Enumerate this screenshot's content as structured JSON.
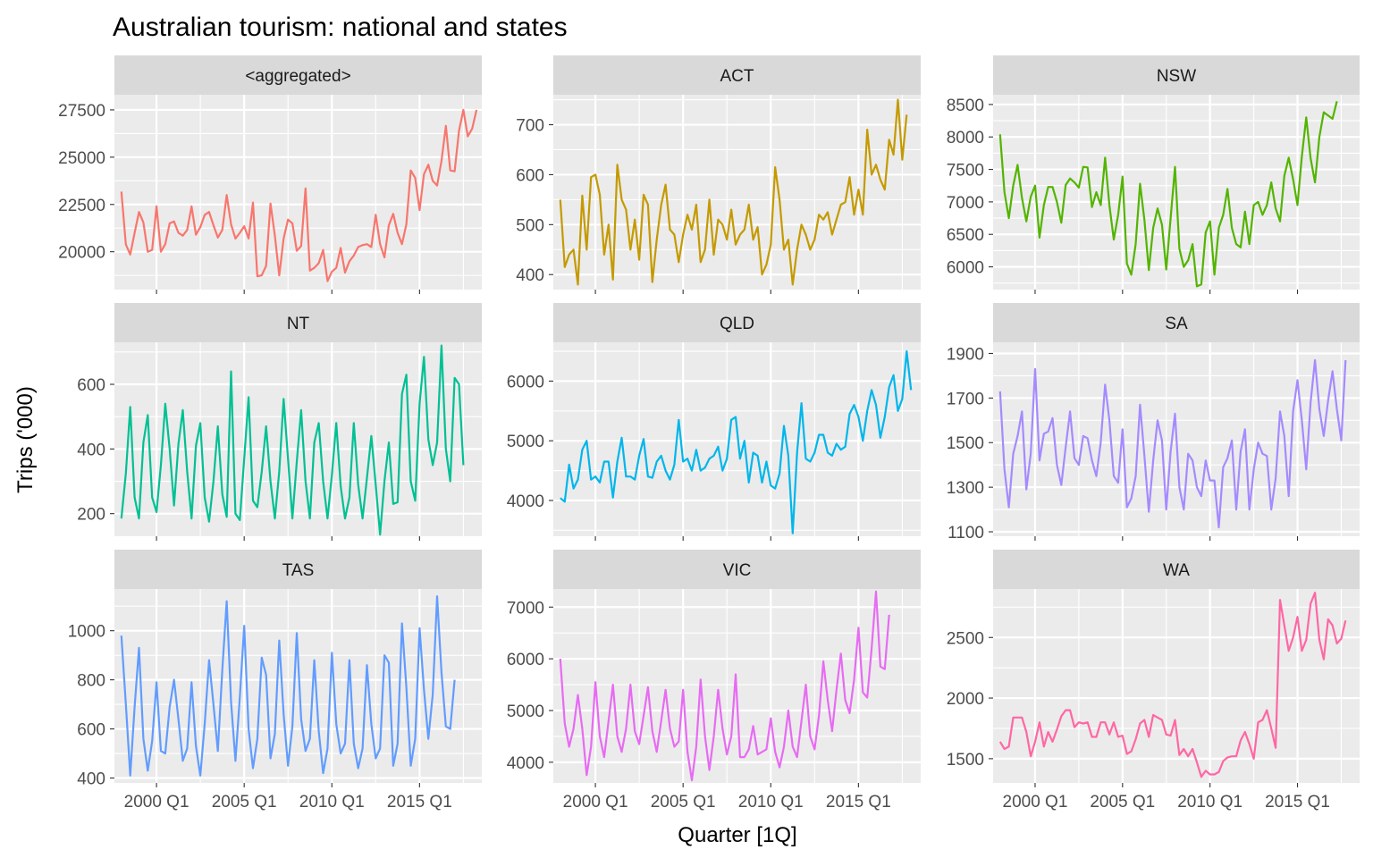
{
  "chart_data": {
    "type": "line",
    "title": "Australian tourism: national and states",
    "xlabel": "Quarter [1Q]",
    "ylabel": "Trips ('000)",
    "x_start": "1998 Q1",
    "x_end": "2017 Q4",
    "x_ticks": [
      {
        "t": 2000.0,
        "label": "2000 Q1"
      },
      {
        "t": 2005.0,
        "label": "2005 Q1"
      },
      {
        "t": 2010.0,
        "label": "2010 Q1"
      },
      {
        "t": 2015.0,
        "label": "2015 Q1"
      }
    ],
    "grid": true,
    "legend": "none",
    "panels": [
      {
        "name": "<aggregated>",
        "color": "#F8766D",
        "ylim": [
          18000,
          28300
        ],
        "y_ticks": [
          20000,
          22500,
          25000,
          27500
        ],
        "values": [
          23180,
          20380,
          19850,
          21000,
          22100,
          21550,
          20000,
          20100,
          22400,
          20000,
          20400,
          21500,
          21600,
          21000,
          20850,
          21150,
          22400,
          20900,
          21300,
          21950,
          22100,
          21400,
          20750,
          21150,
          23000,
          21450,
          20700,
          21000,
          21350,
          20700,
          22600,
          18700,
          18750,
          19250,
          22550,
          20850,
          18750,
          20700,
          21700,
          21500,
          20050,
          20300,
          23350,
          19000,
          19150,
          19400,
          20100,
          18450,
          18950,
          19150,
          20200,
          18900,
          19500,
          19800,
          20250,
          20350,
          20400,
          20250,
          21950,
          20400,
          19700,
          21400,
          22000,
          21000,
          20400,
          21450,
          24300,
          23900,
          22200,
          24100,
          24600,
          23750,
          23500,
          24800,
          26650,
          24300,
          24250,
          26400,
          27500,
          26100,
          26500,
          27500
        ]
      },
      {
        "name": "ACT",
        "color": "#C49A00",
        "ylim": [
          370,
          760
        ],
        "y_ticks": [
          400,
          500,
          600,
          700
        ],
        "values": [
          550,
          415,
          440,
          450,
          380,
          558,
          450,
          595,
          600,
          560,
          440,
          500,
          390,
          620,
          550,
          530,
          450,
          510,
          430,
          560,
          540,
          385,
          470,
          540,
          580,
          490,
          480,
          425,
          480,
          520,
          490,
          540,
          425,
          450,
          550,
          440,
          510,
          500,
          470,
          530,
          460,
          480,
          490,
          540,
          470,
          495,
          400,
          420,
          460,
          615,
          550,
          450,
          470,
          380,
          450,
          500,
          480,
          450,
          470,
          520,
          510,
          525,
          480,
          510,
          540,
          545,
          595,
          520,
          570,
          520,
          690,
          600,
          620,
          590,
          570,
          670,
          640,
          750,
          630,
          720
        ]
      },
      {
        "name": "NSW",
        "color": "#53B400",
        "ylim": [
          5650,
          8650
        ],
        "y_ticks": [
          6000,
          6500,
          7000,
          7500,
          8000,
          8500
        ],
        "values": [
          8040,
          7150,
          6750,
          7250,
          7570,
          7060,
          6700,
          7080,
          7250,
          6450,
          6950,
          7230,
          7230,
          7000,
          6680,
          7260,
          7360,
          7300,
          7220,
          7540,
          7530,
          6920,
          7150,
          6950,
          7680,
          6950,
          6420,
          6800,
          7390,
          6050,
          5880,
          6350,
          7280,
          6720,
          5950,
          6600,
          6900,
          6650,
          5960,
          6750,
          7540,
          6280,
          6000,
          6100,
          6350,
          5700,
          5730,
          6530,
          6700,
          5880,
          6600,
          6800,
          7200,
          6600,
          6350,
          6300,
          6850,
          6350,
          6950,
          7000,
          6800,
          6950,
          7300,
          6900,
          6700,
          7400,
          7680,
          7350,
          6950,
          7700,
          8300,
          7670,
          7300,
          8000,
          8380,
          8330,
          8280,
          8550
        ]
      },
      {
        "name": "NT",
        "color": "#00C094",
        "ylim": [
          130,
          730
        ],
        "y_ticks": [
          200,
          400,
          600
        ],
        "values": [
          185,
          325,
          530,
          250,
          185,
          420,
          505,
          250,
          205,
          350,
          540,
          400,
          225,
          415,
          520,
          330,
          185,
          410,
          480,
          250,
          175,
          300,
          470,
          260,
          190,
          640,
          200,
          180,
          370,
          560,
          240,
          220,
          330,
          470,
          300,
          185,
          330,
          555,
          370,
          185,
          360,
          520,
          300,
          185,
          420,
          480,
          300,
          185,
          320,
          480,
          285,
          185,
          250,
          480,
          290,
          185,
          310,
          440,
          290,
          135,
          300,
          420,
          230,
          235,
          570,
          630,
          300,
          240,
          540,
          685,
          430,
          350,
          420,
          720,
          400,
          300,
          620,
          600,
          350
        ]
      },
      {
        "name": "QLD",
        "color": "#00B6EB",
        "ylim": [
          3400,
          6650
        ],
        "y_ticks": [
          4000,
          5000,
          6000
        ],
        "values": [
          4040,
          3980,
          4600,
          4200,
          4350,
          4850,
          5000,
          4350,
          4400,
          4300,
          4650,
          4650,
          4050,
          4650,
          5050,
          4400,
          4400,
          4350,
          4750,
          5030,
          4400,
          4380,
          4650,
          4750,
          4500,
          4350,
          4600,
          5350,
          4650,
          4700,
          4500,
          4850,
          4500,
          4550,
          4700,
          4750,
          4900,
          4500,
          4700,
          5350,
          5400,
          4700,
          5000,
          4300,
          4800,
          4750,
          4300,
          4650,
          4250,
          4200,
          4450,
          5250,
          4750,
          3450,
          4800,
          5630,
          4700,
          4650,
          4800,
          5100,
          5100,
          4800,
          4750,
          4950,
          4850,
          4900,
          5450,
          5600,
          5400,
          5000,
          5500,
          5850,
          5600,
          5050,
          5400,
          5900,
          6100,
          5500,
          5700,
          6500,
          5850
        ]
      },
      {
        "name": "SA",
        "color": "#A58AFF",
        "ylim": [
          1080,
          1950
        ],
        "y_ticks": [
          1100,
          1300,
          1500,
          1700,
          1900
        ],
        "values": [
          1730,
          1380,
          1210,
          1450,
          1530,
          1640,
          1290,
          1450,
          1830,
          1420,
          1540,
          1550,
          1610,
          1400,
          1310,
          1480,
          1640,
          1430,
          1400,
          1530,
          1520,
          1420,
          1350,
          1500,
          1760,
          1600,
          1350,
          1320,
          1560,
          1210,
          1250,
          1350,
          1670,
          1440,
          1190,
          1420,
          1600,
          1510,
          1200,
          1460,
          1630,
          1300,
          1200,
          1450,
          1420,
          1300,
          1260,
          1420,
          1330,
          1330,
          1120,
          1390,
          1430,
          1510,
          1200,
          1460,
          1560,
          1200,
          1380,
          1500,
          1450,
          1440,
          1200,
          1340,
          1640,
          1530,
          1260,
          1640,
          1780,
          1600,
          1380,
          1680,
          1870,
          1650,
          1530,
          1690,
          1820,
          1650,
          1510,
          1870
        ]
      },
      {
        "name": "TAS",
        "color": "#619CFF",
        "ylim": [
          380,
          1170
        ],
        "y_ticks": [
          400,
          600,
          800,
          1000
        ],
        "values": [
          980,
          700,
          410,
          690,
          930,
          560,
          430,
          550,
          790,
          510,
          500,
          690,
          800,
          640,
          470,
          520,
          790,
          530,
          410,
          620,
          880,
          700,
          510,
          840,
          1120,
          710,
          470,
          730,
          1020,
          600,
          440,
          560,
          890,
          820,
          480,
          580,
          960,
          660,
          450,
          610,
          990,
          640,
          510,
          560,
          880,
          590,
          420,
          520,
          910,
          620,
          500,
          540,
          880,
          540,
          440,
          520,
          860,
          620,
          480,
          520,
          900,
          870,
          450,
          540,
          1030,
          770,
          450,
          560,
          1010,
          760,
          560,
          740,
          1140,
          830,
          610,
          600,
          800
        ]
      },
      {
        "name": "VIC",
        "color": "#E76BF3",
        "ylim": [
          3600,
          7350
        ],
        "y_ticks": [
          4000,
          5000,
          6000,
          7000
        ],
        "values": [
          6000,
          4750,
          4300,
          4650,
          5300,
          4650,
          3750,
          4300,
          5550,
          4500,
          4100,
          4800,
          5500,
          4500,
          4200,
          4650,
          5500,
          4600,
          4350,
          4900,
          5450,
          4600,
          4200,
          4800,
          5400,
          4650,
          4300,
          4400,
          5400,
          4200,
          3650,
          4300,
          5600,
          4500,
          3850,
          4500,
          5400,
          4650,
          4150,
          4500,
          5700,
          4100,
          4100,
          4250,
          4700,
          4150,
          4200,
          4250,
          4850,
          4200,
          3900,
          4300,
          5000,
          4300,
          4100,
          4800,
          5500,
          4500,
          4250,
          4900,
          5950,
          5200,
          4600,
          5400,
          6100,
          5200,
          4950,
          5600,
          6600,
          5350,
          5250,
          6200,
          7300,
          5850,
          5800,
          6850
        ]
      },
      {
        "name": "WA",
        "color": "#FF67A4",
        "ylim": [
          1300,
          2900
        ],
        "y_ticks": [
          1500,
          2000,
          2500
        ],
        "values": [
          1640,
          1580,
          1600,
          1840,
          1840,
          1840,
          1720,
          1520,
          1640,
          1800,
          1600,
          1720,
          1640,
          1740,
          1850,
          1900,
          1900,
          1760,
          1800,
          1790,
          1800,
          1680,
          1680,
          1800,
          1800,
          1700,
          1800,
          1680,
          1690,
          1540,
          1560,
          1660,
          1790,
          1820,
          1680,
          1860,
          1840,
          1820,
          1700,
          1690,
          1820,
          1530,
          1580,
          1520,
          1580,
          1470,
          1350,
          1400,
          1370,
          1370,
          1390,
          1480,
          1510,
          1520,
          1520,
          1650,
          1720,
          1620,
          1500,
          1800,
          1820,
          1900,
          1750,
          1590,
          2810,
          2600,
          2390,
          2500,
          2670,
          2390,
          2480,
          2780,
          2870,
          2480,
          2320,
          2650,
          2600,
          2450,
          2490,
          2640
        ]
      }
    ]
  }
}
